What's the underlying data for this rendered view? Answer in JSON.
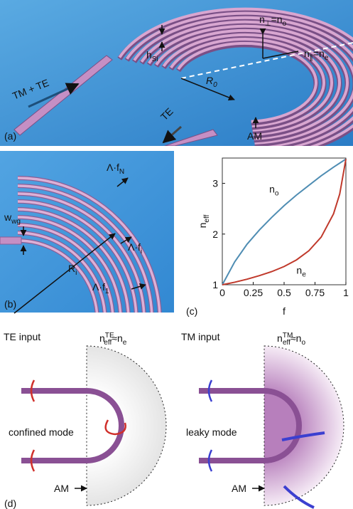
{
  "panels": {
    "a": {
      "label": "(a)",
      "input": "TM + TE",
      "height": [
        {
          "text": "h"
        },
        {
          "sub": "Si"
        }
      ],
      "n_perp": [
        {
          "text": "n"
        },
        {
          "sub": "⊥"
        },
        {
          "text": "=n"
        },
        {
          "sub": "o"
        }
      ],
      "n_par": [
        {
          "text": "n"
        },
        {
          "sub": "∥"
        },
        {
          "text": "=n"
        },
        {
          "sub": "e"
        }
      ],
      "radius": [
        {
          "text": "R"
        },
        {
          "sub": "0"
        }
      ],
      "output": "TE",
      "am": "AM"
    },
    "b": {
      "label": "(b)",
      "period_n": [
        {
          "text": "Λ·f"
        },
        {
          "sub": "N"
        }
      ],
      "width": [
        {
          "text": "w"
        },
        {
          "sub": "wg"
        }
      ],
      "period_i": [
        {
          "text": "Λ·f"
        },
        {
          "sub": "i"
        }
      ],
      "radius": [
        {
          "text": "R"
        },
        {
          "sub": "i"
        }
      ],
      "period_1": [
        {
          "text": "Λ·f"
        },
        {
          "sub": "1"
        }
      ]
    },
    "c": {
      "label": "(c)"
    },
    "d": {
      "label": "(d)",
      "left": {
        "input": "TE input",
        "index": [
          {
            "text": "n"
          },
          {
            "sup": "TE",
            "sub": "eff"
          },
          {
            "text": "≈n"
          },
          {
            "sub": "e"
          }
        ],
        "mode": "confined mode",
        "am": "AM"
      },
      "right": {
        "input": "TM input",
        "index": [
          {
            "text": "n"
          },
          {
            "sup": "TM",
            "sub": "eff"
          },
          {
            "text": "≈n"
          },
          {
            "sub": "o"
          }
        ],
        "mode": "leaky mode",
        "am": "AM"
      }
    }
  },
  "chart_data": {
    "type": "line",
    "x": [
      0,
      0.1,
      0.2,
      0.3,
      0.4,
      0.5,
      0.6,
      0.7,
      0.8,
      0.9,
      0.95,
      1
    ],
    "xlabel": "f",
    "ylabel": [
      {
        "text": "n"
      },
      {
        "sub": "eff"
      }
    ],
    "series": [
      {
        "name": [
          {
            "text": "n"
          },
          {
            "sub": "o"
          }
        ],
        "color": "#4f8db3",
        "values": [
          1,
          1.45,
          1.8,
          2.08,
          2.33,
          2.56,
          2.77,
          2.96,
          3.15,
          3.32,
          3.4,
          3.48
        ]
      },
      {
        "name": [
          {
            "text": "n"
          },
          {
            "sub": "e"
          }
        ],
        "color": "#c0392b",
        "values": [
          1,
          1.05,
          1.11,
          1.18,
          1.26,
          1.36,
          1.49,
          1.67,
          1.94,
          2.4,
          2.79,
          3.48
        ]
      }
    ],
    "xlim": [
      0,
      1
    ],
    "ylim": [
      1,
      3.5
    ],
    "xticks": [
      0,
      0.25,
      0.5,
      0.75,
      1
    ],
    "yticks": [
      1,
      2,
      3
    ]
  }
}
